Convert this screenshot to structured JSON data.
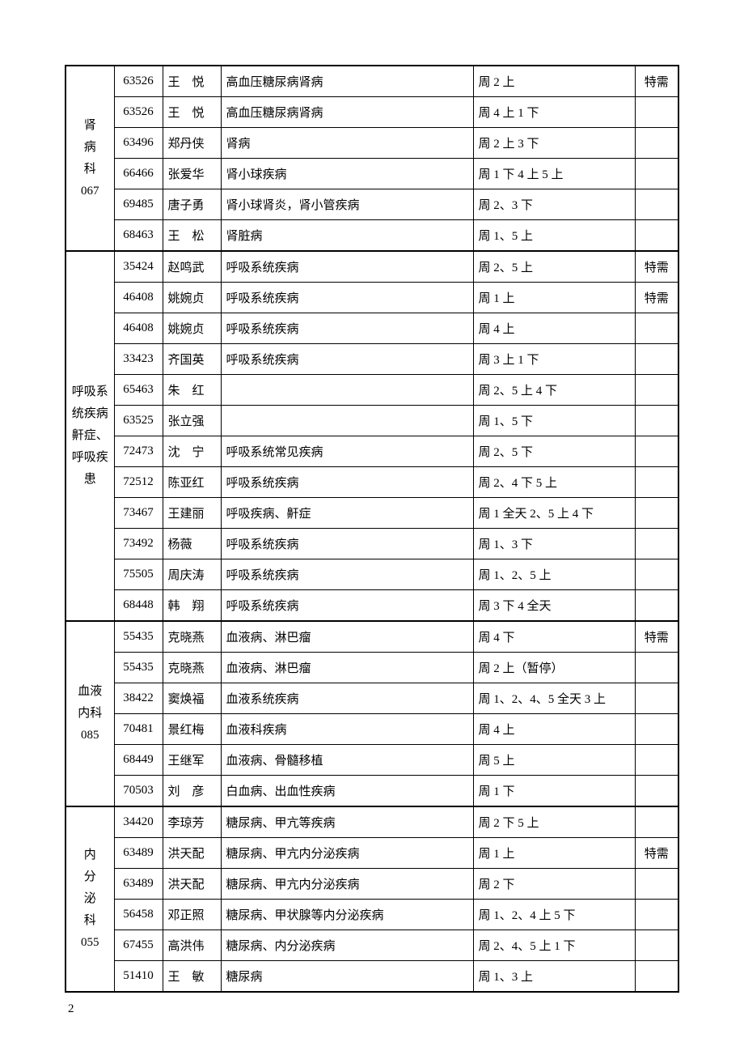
{
  "page_number": "2",
  "table": {
    "border_color": "#000000",
    "background_color": "#ffffff",
    "font_size": 15,
    "columns": {
      "dept_width": 60,
      "id_width": 60,
      "name_width": 72,
      "time_width": 200,
      "note_width": 54
    },
    "sections": [
      {
        "dept_lines": [
          "肾",
          "病",
          "科",
          "067"
        ],
        "rows": [
          {
            "id": "63526",
            "name": "王　悦",
            "spec": "高血压糖尿病肾病",
            "time": "周 2 上",
            "note": "特需"
          },
          {
            "id": "63526",
            "name": "王　悦",
            "spec": "高血压糖尿病肾病",
            "time": "周 4 上 1 下",
            "note": ""
          },
          {
            "id": "63496",
            "name": "郑丹侠",
            "spec": "肾病",
            "time": "周 2 上 3 下",
            "note": ""
          },
          {
            "id": "66466",
            "name": "张爱华",
            "spec": "肾小球疾病",
            "time": "周 1 下 4 上 5 上",
            "note": ""
          },
          {
            "id": "69485",
            "name": "唐子勇",
            "spec": "肾小球肾炎，肾小管疾病",
            "time": "周 2、3 下",
            "note": ""
          },
          {
            "id": "68463",
            "name": "王　松",
            "spec": "肾脏病",
            "time": "周 1、5 上",
            "note": ""
          }
        ]
      },
      {
        "dept_lines": [
          "呼吸系",
          "统疾病",
          "鼾症、",
          "呼吸疾",
          "患"
        ],
        "rows": [
          {
            "id": "35424",
            "name": "赵鸣武",
            "spec": "呼吸系统疾病",
            "time": "周 2、5 上",
            "note": "特需"
          },
          {
            "id": "46408",
            "name": "姚婉贞",
            "spec": "呼吸系统疾病",
            "time": "周 1 上",
            "note": "特需"
          },
          {
            "id": "46408",
            "name": "姚婉贞",
            "spec": "呼吸系统疾病",
            "time": "周 4 上",
            "note": ""
          },
          {
            "id": "33423",
            "name": "齐国英",
            "spec": "呼吸系统疾病",
            "time": "周 3 上 1 下",
            "note": ""
          },
          {
            "id": "65463",
            "name": "朱　红",
            "spec": "",
            "time": "周 2、5 上 4 下",
            "note": ""
          },
          {
            "id": "63525",
            "name": "张立强",
            "spec": "",
            "time": "周 1、5 下",
            "note": ""
          },
          {
            "id": "72473",
            "name": "沈　宁",
            "spec": "呼吸系统常见疾病",
            "time": "周 2、5 下",
            "note": ""
          },
          {
            "id": "72512",
            "name": "陈亚红",
            "spec": "呼吸系统疾病",
            "time": "周 2、4 下 5 上",
            "note": ""
          },
          {
            "id": "73467",
            "name": "王建丽",
            "spec": "呼吸疾病、鼾症",
            "time": "周 1 全天 2、5 上 4 下",
            "note": ""
          },
          {
            "id": "73492",
            "name": "杨薇",
            "spec": "呼吸系统疾病",
            "time": "周 1、3 下",
            "note": ""
          },
          {
            "id": "75505",
            "name": "周庆涛",
            "spec": "呼吸系统疾病",
            "time": "周 1、2、5 上",
            "note": ""
          },
          {
            "id": "68448",
            "name": "韩　翔",
            "spec": "呼吸系统疾病",
            "time": "周 3 下 4 全天",
            "note": ""
          }
        ]
      },
      {
        "dept_lines": [
          "血液",
          "内科",
          "085"
        ],
        "rows": [
          {
            "id": "55435",
            "name": "克晓燕",
            "spec": "血液病、淋巴瘤",
            "time": "周 4 下",
            "note": "特需"
          },
          {
            "id": "55435",
            "name": "克晓燕",
            "spec": "血液病、淋巴瘤",
            "time": "周 2 上（暂停）",
            "note": ""
          },
          {
            "id": "38422",
            "name": "窦焕福",
            "spec": "血液系统疾病",
            "time": "周 1、2、4、5 全天 3 上",
            "note": ""
          },
          {
            "id": "70481",
            "name": "景红梅",
            "spec": "血液科疾病",
            "time": "周 4 上",
            "note": ""
          },
          {
            "id": "68449",
            "name": "王继军",
            "spec": "血液病、骨髓移植",
            "time": "周 5 上",
            "note": ""
          },
          {
            "id": "70503",
            "name": "刘　彦",
            "spec": "白血病、出血性疾病",
            "time": "周 1 下",
            "note": ""
          }
        ]
      },
      {
        "dept_lines": [
          "内",
          "分",
          "泌",
          "科",
          "055"
        ],
        "rows": [
          {
            "id": "34420",
            "name": "李琼芳",
            "spec": "糖尿病、甲亢等疾病",
            "time": "周 2 下 5 上",
            "note": ""
          },
          {
            "id": "63489",
            "name": "洪天配",
            "spec": "糖尿病、甲亢内分泌疾病",
            "time": "周 1 上",
            "note": "特需"
          },
          {
            "id": "63489",
            "name": "洪天配",
            "spec": "糖尿病、甲亢内分泌疾病",
            "time": "周 2 下",
            "note": ""
          },
          {
            "id": "56458",
            "name": "邓正照",
            "spec": "糖尿病、甲状腺等内分泌疾病",
            "time": "周 1、2、4 上 5 下",
            "note": ""
          },
          {
            "id": "67455",
            "name": "高洪伟",
            "spec": "糖尿病、内分泌疾病",
            "time": "周 2、4、5 上 1 下",
            "note": ""
          },
          {
            "id": "51410",
            "name": "王　敏",
            "spec": "糖尿病",
            "time": "周 1、3 上",
            "note": ""
          }
        ]
      }
    ]
  }
}
